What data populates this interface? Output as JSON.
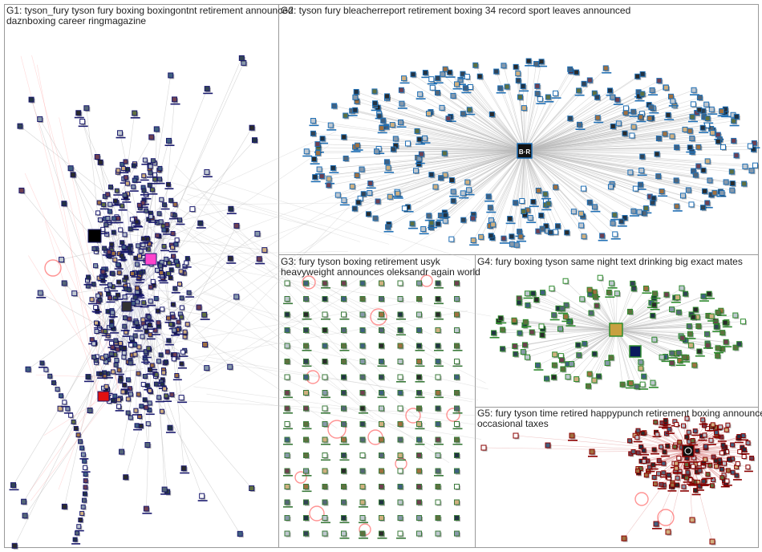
{
  "groups": [
    {
      "id": "G1",
      "label_lines": [
        "G1: tyson_fury tyson fury boxing boxingontnt retirement announced",
        "daznboxing career ringmagazine"
      ],
      "node_color": "#1a1a6e",
      "edge_color": "#b0b0b0"
    },
    {
      "id": "G2",
      "label_lines": [
        "G2: tyson fury bleacherreport retirement boxing 34 record sport leaves announced"
      ],
      "node_color": "#1f6fb5",
      "edge_color": "#b8b8b8"
    },
    {
      "id": "G3",
      "label_lines": [
        "G3: fury tyson boxing retirement usyk",
        "heavyweight announces oleksandr again world"
      ],
      "node_color": "#3a7a3a",
      "edge_color": "#ff9999"
    },
    {
      "id": "G4",
      "label_lines": [
        "G4: fury boxing tyson same night text drinking big exact mates"
      ],
      "node_color": "#2e8b2e",
      "edge_color": "#b8b8b8"
    },
    {
      "id": "G5",
      "label_lines": [
        "G5: fury tyson time retired happypunch retirement boxing announced",
        "occasional taxes"
      ],
      "node_color": "#8b0000",
      "edge_color": "#d98080"
    }
  ],
  "hub_badges": {
    "bleacherreport": "B·R"
  },
  "colors": {
    "frame": "#9a9a9a",
    "shadow": "#7a7a7a",
    "self_loop": "#ff3b3b",
    "text": "#222222"
  }
}
